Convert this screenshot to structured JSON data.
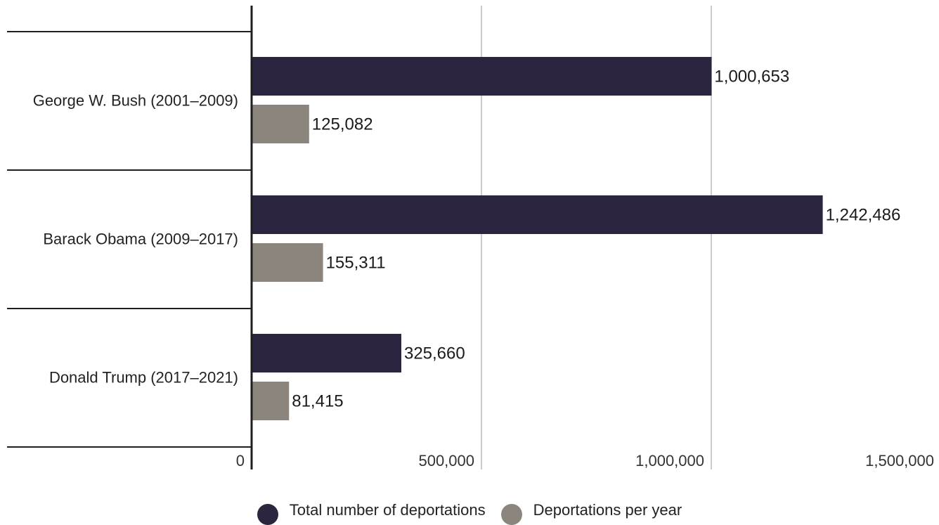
{
  "chart_data": {
    "type": "bar",
    "orientation": "horizontal",
    "categories": [
      "George W. Bush (2001–2009)",
      "Barack Obama (2009–2017)",
      "Donald Trump (2017–2021)"
    ],
    "series": [
      {
        "name": "Total number of deportations",
        "color": "#2b2540",
        "values": [
          1000653,
          1242486,
          325660
        ],
        "labels": [
          "1,000,653",
          "1,242,486",
          "325,660"
        ]
      },
      {
        "name": "Deportations per year",
        "color": "#8b857e",
        "values": [
          125082,
          155311,
          81415
        ],
        "labels": [
          "125,082",
          "155,311",
          "81,415"
        ]
      }
    ],
    "xlim": [
      0,
      1500000
    ],
    "xticks": [
      0,
      500000,
      1000000,
      1500000
    ],
    "xtick_labels": [
      "0",
      "500,000",
      "1,000,000",
      "1,500,000"
    ],
    "grid": true,
    "legend_position": "bottom-center"
  }
}
